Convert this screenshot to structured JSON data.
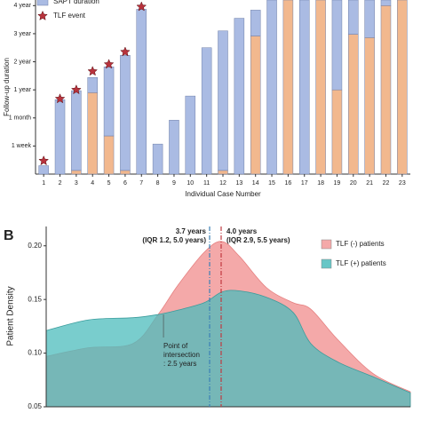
{
  "chart_data": [
    {
      "type": "bar",
      "stacked": true,
      "x_label": "Individual Case Number",
      "y_label": "Follow-up duration",
      "categories": [
        "1",
        "2",
        "3",
        "4",
        "5",
        "6",
        "7",
        "8",
        "9",
        "10",
        "11",
        "12",
        "13",
        "14",
        "15",
        "16",
        "17",
        "18",
        "19",
        "20",
        "21",
        "22",
        "23"
      ],
      "series": [
        {
          "color": "#f2b88e",
          "values": [
            0,
            0,
            0.13,
            2.9,
            1.36,
            0.13,
            0,
            0,
            0,
            0,
            0,
            0.13,
            0,
            4.92,
            0,
            6.2,
            0,
            6.2,
            3.0,
            4.98,
            4.86,
            6.0,
            6.2
          ]
        },
        {
          "name": "SAPT duration",
          "color": "#aabbe3",
          "values": [
            0.3,
            2.65,
            2.84,
            0.54,
            2.46,
            4.1,
            5.87,
            1.07,
            1.92,
            2.78,
            4.5,
            4.97,
            5.55,
            0.92,
            6.2,
            0,
            6.2,
            0,
            3.2,
            1.22,
            1.34,
            0.2,
            0
          ]
        }
      ],
      "events": {
        "name": "TLF event",
        "color": "#b8323c",
        "values": [
          0.47,
          2.68,
          3.0,
          3.66,
          3.91,
          4.35,
          5.96,
          null,
          null,
          null,
          null,
          null,
          null,
          null,
          null,
          null,
          null,
          null,
          null,
          null,
          null,
          null,
          null
        ]
      },
      "ylim": [
        0,
        6.2
      ],
      "yticks": [
        {
          "value": 1,
          "label": "1 week"
        },
        {
          "value": 2,
          "label": "1 month"
        },
        {
          "value": 3,
          "label": "1 year"
        },
        {
          "value": 4,
          "label": "2 year"
        },
        {
          "value": 5,
          "label": "3 year"
        },
        {
          "value": 6,
          "label": "4 year"
        }
      ],
      "legend": "upper left"
    },
    {
      "type": "area",
      "panel": "B",
      "y_label": "Patient Density",
      "x": [
        -0.55,
        0.56,
        1.71,
        2.36,
        2.87,
        3.56,
        4.02,
        4.48,
        5.18,
        5.87,
        6.33,
        7.02,
        7.95,
        8.92
      ],
      "series": [
        {
          "name": "TLF (-) patients",
          "color": "#f29a9a",
          "values": [
            0.097,
            0.105,
            0.109,
            0.136,
            0.163,
            0.194,
            0.204,
            0.19,
            0.161,
            0.147,
            0.141,
            0.113,
            0.081,
            0.064
          ]
        },
        {
          "name": "TLF (+) patients",
          "color": "#4cbcbc",
          "values": [
            0.121,
            0.131,
            0.133,
            0.136,
            0.14,
            0.147,
            0.157,
            0.158,
            0.152,
            0.138,
            0.109,
            0.092,
            0.078,
            0.063
          ]
        }
      ],
      "vlines": [
        {
          "x": 3.7,
          "color": "#3a7fb5"
        },
        {
          "x": 4.0,
          "color": "#c0393f"
        }
      ],
      "annotations": [
        {
          "lines": [
            "3.7 years",
            "(IQR 1.2, 5.0 years)"
          ],
          "color": "#2f6ea8"
        },
        {
          "lines": [
            "4.0 years",
            "(IQR 2.9, 5.5 years)"
          ],
          "color": "#b8323c"
        },
        {
          "lines": [
            "Point of",
            "intersection",
            ": 2.5 years"
          ],
          "x": 2.5,
          "color": "#222222"
        }
      ],
      "xlim": [
        -0.55,
        8.92
      ],
      "ylim": [
        0.05,
        0.218
      ],
      "yticks": [
        {
          "value": 0.05,
          "label": "0.05"
        },
        {
          "value": 0.1,
          "label": "0.10"
        },
        0.15,
        {
          "value": 0.2,
          "label": "0.20"
        }
      ],
      "legend": "upper right"
    }
  ]
}
